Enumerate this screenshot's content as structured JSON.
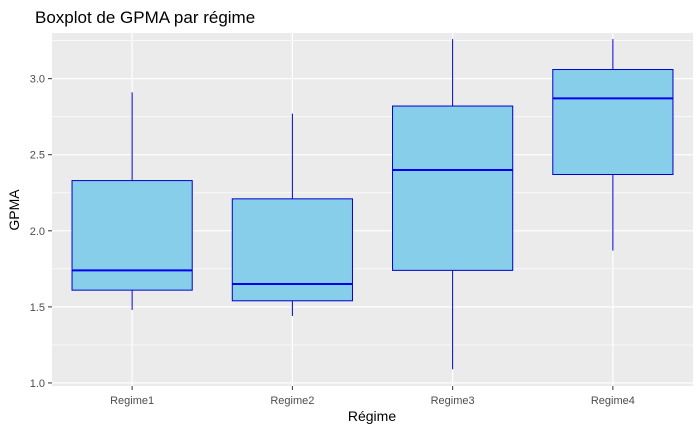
{
  "chart_data": {
    "type": "boxplot",
    "title": "Boxplot de GPMA par régime",
    "xlabel": "Régime",
    "ylabel": "GPMA",
    "categories": [
      "Regime1",
      "Regime2",
      "Regime3",
      "Regime4"
    ],
    "boxes": [
      {
        "category": "Regime1",
        "min": 1.48,
        "q1": 1.61,
        "median": 1.74,
        "q3": 2.33,
        "max": 2.91
      },
      {
        "category": "Regime2",
        "min": 1.44,
        "q1": 1.54,
        "median": 1.65,
        "q3": 2.21,
        "max": 2.77
      },
      {
        "category": "Regime3",
        "min": 1.09,
        "q1": 1.74,
        "median": 2.4,
        "q3": 2.82,
        "max": 3.26
      },
      {
        "category": "Regime4",
        "min": 1.87,
        "q1": 2.37,
        "median": 2.87,
        "q3": 3.06,
        "max": 3.26
      }
    ],
    "ylim": [
      0.98,
      3.3
    ],
    "yticks": [
      "1.0",
      "1.5",
      "2.0",
      "2.5",
      "3.0"
    ],
    "grid": true,
    "colors": {
      "box_fill": "#87CEEB",
      "box_border": "#0000CD",
      "median_line": "#0000EE",
      "panel_background": "#EBEBEB",
      "grid_line": "#FFFFFF"
    }
  }
}
